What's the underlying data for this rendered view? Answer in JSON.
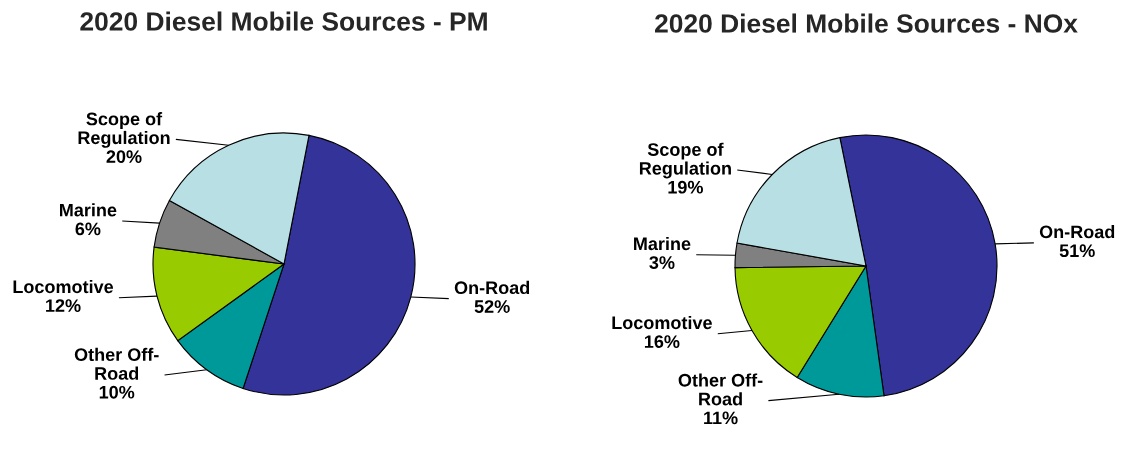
{
  "chart_data": [
    {
      "type": "pie",
      "title": "2020 Diesel Mobile Sources - PM",
      "categories": [
        "On-Road",
        "Other Off-\nRoad",
        "Locomotive",
        "Marine",
        "Scope of\nRegulation"
      ],
      "values": [
        52,
        10,
        12,
        6,
        20
      ],
      "colors": [
        "#333399",
        "#009999",
        "#99cc00",
        "#808080",
        "#b8e0e4"
      ],
      "value_labels": [
        "52%",
        "10%",
        "12%",
        "6%",
        "20%"
      ]
    },
    {
      "type": "pie",
      "title": "2020 Diesel Mobile Sources - NOx",
      "categories": [
        "On-Road",
        "Other Off-\nRoad",
        "Locomotive",
        "Marine",
        "Scope of\nRegulation"
      ],
      "values": [
        51,
        11,
        16,
        3,
        19
      ],
      "colors": [
        "#333399",
        "#009999",
        "#99cc00",
        "#808080",
        "#b8e0e4"
      ],
      "value_labels": [
        "51%",
        "11%",
        "16%",
        "3%",
        "19%"
      ]
    }
  ]
}
